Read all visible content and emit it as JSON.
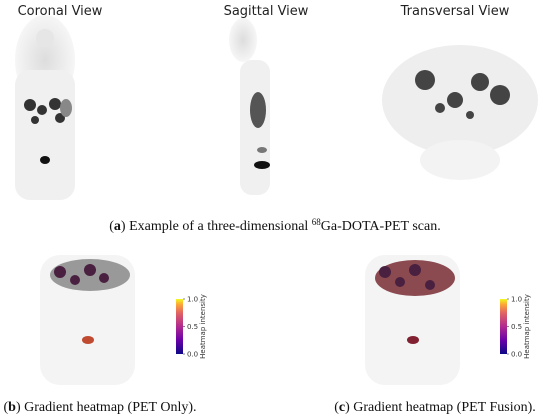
{
  "panel_a": {
    "views": [
      "Coronal View",
      "Sagittal View",
      "Transversal View"
    ],
    "caption": [
      {
        "text": "(",
        "bold": false
      },
      {
        "text": "a",
        "bold": true
      },
      {
        "text": ") Example of a three-dimensional ",
        "bold": false
      },
      {
        "text": "68",
        "sup": true
      },
      {
        "text": "Ga-DOTA-PET scan.",
        "bold": false
      }
    ]
  },
  "panel_b": {
    "caption": [
      {
        "text": "(",
        "bold": false
      },
      {
        "text": "b",
        "bold": true
      },
      {
        "text": ") Gradient heatmap (PET Only).",
        "bold": false
      }
    ],
    "colorbar": {
      "label": "Heatmap intensity",
      "range": [
        0,
        1
      ],
      "ticks": [
        {
          "value": 0,
          "label": "0.0"
        },
        {
          "value": 0.5,
          "label": "0.5"
        },
        {
          "value": 1,
          "label": "1.0"
        }
      ]
    }
  },
  "panel_c": {
    "caption": [
      {
        "text": "(",
        "bold": false
      },
      {
        "text": "c",
        "bold": true
      },
      {
        "text": ") Gradient heatmap (PET Fusion).",
        "bold": false
      }
    ],
    "colorbar": {
      "label": "Heatmap intensity",
      "range": [
        0,
        1
      ],
      "ticks": [
        {
          "value": 0,
          "label": "0.0"
        },
        {
          "value": 0.5,
          "label": "0.5"
        },
        {
          "value": 1,
          "label": "1.0"
        }
      ]
    }
  }
}
